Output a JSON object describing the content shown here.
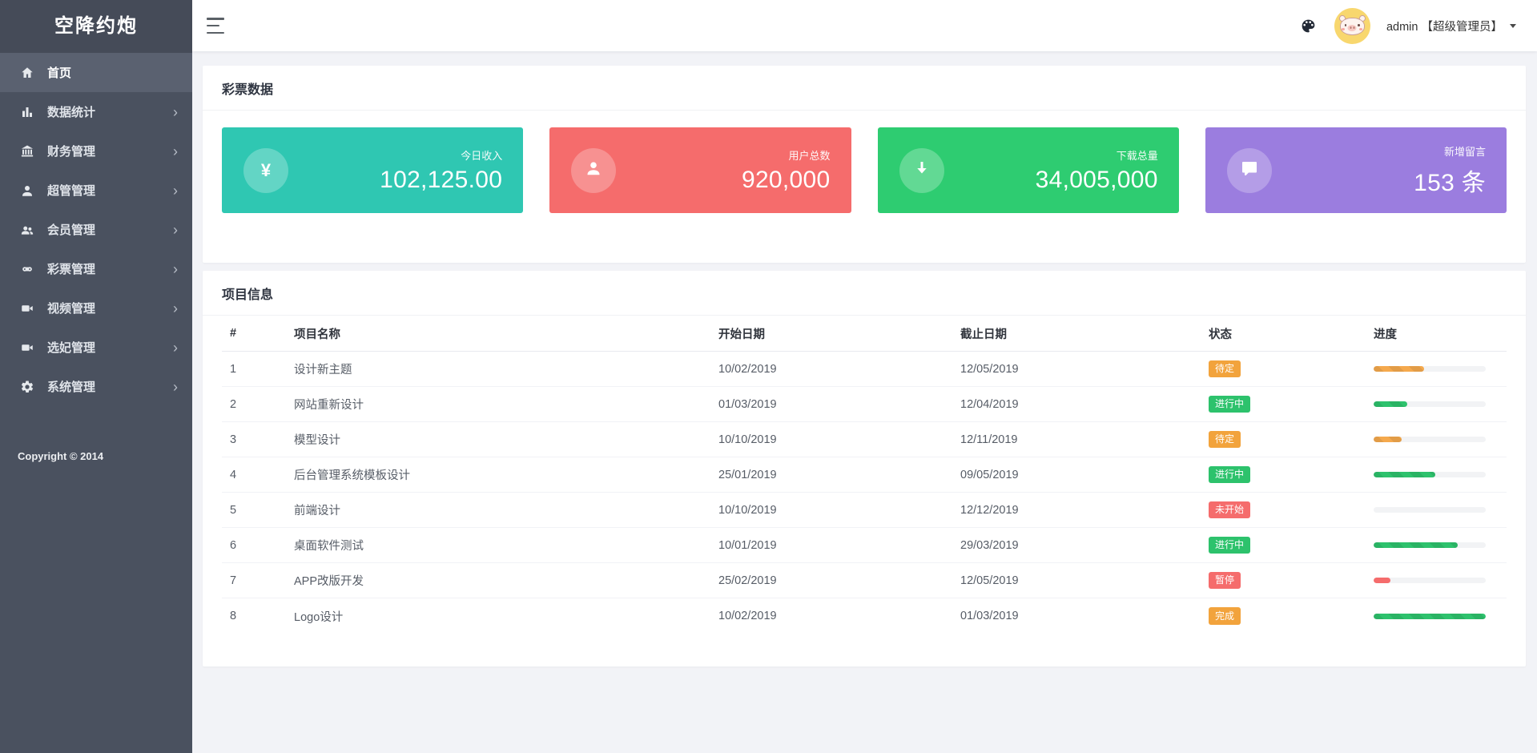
{
  "app": {
    "logo": "空降约炮",
    "copyright": "Copyright © 2014"
  },
  "sidebar": {
    "items": [
      {
        "label": "首页",
        "icon": "home-icon",
        "active": true,
        "has_children": false
      },
      {
        "label": "数据统计",
        "icon": "bar-chart-icon",
        "active": false,
        "has_children": true
      },
      {
        "label": "财务管理",
        "icon": "bank-icon",
        "active": false,
        "has_children": true
      },
      {
        "label": "超管管理",
        "icon": "user-icon",
        "active": false,
        "has_children": true
      },
      {
        "label": "会员管理",
        "icon": "users-icon",
        "active": false,
        "has_children": true
      },
      {
        "label": "彩票管理",
        "icon": "gamepad-icon",
        "active": false,
        "has_children": true
      },
      {
        "label": "视频管理",
        "icon": "video-icon",
        "active": false,
        "has_children": true
      },
      {
        "label": "选妃管理",
        "icon": "video-icon",
        "active": false,
        "has_children": true
      },
      {
        "label": "系统管理",
        "icon": "gear-icon",
        "active": false,
        "has_children": true
      }
    ]
  },
  "header": {
    "user_label": "admin 【超级管理员】"
  },
  "stats_panel": {
    "title": "彩票数据",
    "cards": [
      {
        "label": "今日收入",
        "value": "102,125.00",
        "color": "#2fc7b2",
        "icon": "yen-icon"
      },
      {
        "label": "用户总数",
        "value": "920,000",
        "color": "#f56c6c",
        "icon": "person-icon"
      },
      {
        "label": "下载总量",
        "value": "34,005,000",
        "color": "#2ecc71",
        "icon": "download-icon"
      },
      {
        "label": "新增留言",
        "value": "153 条",
        "color": "#9b7ddf",
        "icon": "chat-icon"
      }
    ]
  },
  "projects_panel": {
    "title": "项目信息",
    "columns": [
      "#",
      "项目名称",
      "开始日期",
      "截止日期",
      "状态",
      "进度"
    ],
    "rows": [
      {
        "id": "1",
        "name": "设计新主题",
        "start": "10/02/2019",
        "end": "12/05/2019",
        "status": "待定",
        "status_color": "orange",
        "progress": 45,
        "bar": "orange"
      },
      {
        "id": "2",
        "name": "网站重新设计",
        "start": "01/03/2019",
        "end": "12/04/2019",
        "status": "进行中",
        "status_color": "green",
        "progress": 30,
        "bar": "green"
      },
      {
        "id": "3",
        "name": "模型设计",
        "start": "10/10/2019",
        "end": "12/11/2019",
        "status": "待定",
        "status_color": "orange",
        "progress": 25,
        "bar": "orange"
      },
      {
        "id": "4",
        "name": "后台管理系统模板设计",
        "start": "25/01/2019",
        "end": "09/05/2019",
        "status": "进行中",
        "status_color": "green",
        "progress": 55,
        "bar": "green"
      },
      {
        "id": "5",
        "name": "前端设计",
        "start": "10/10/2019",
        "end": "12/12/2019",
        "status": "未开始",
        "status_color": "red",
        "progress": 0,
        "bar": "green"
      },
      {
        "id": "6",
        "name": "桌面软件测试",
        "start": "10/01/2019",
        "end": "29/03/2019",
        "status": "进行中",
        "status_color": "green",
        "progress": 75,
        "bar": "green"
      },
      {
        "id": "7",
        "name": "APP改版开发",
        "start": "25/02/2019",
        "end": "12/05/2019",
        "status": "暂停",
        "status_color": "red",
        "progress": 15,
        "bar": "red"
      },
      {
        "id": "8",
        "name": "Logo设计",
        "start": "10/02/2019",
        "end": "01/03/2019",
        "status": "完成",
        "status_color": "orange",
        "progress": 100,
        "bar": "green"
      }
    ]
  }
}
